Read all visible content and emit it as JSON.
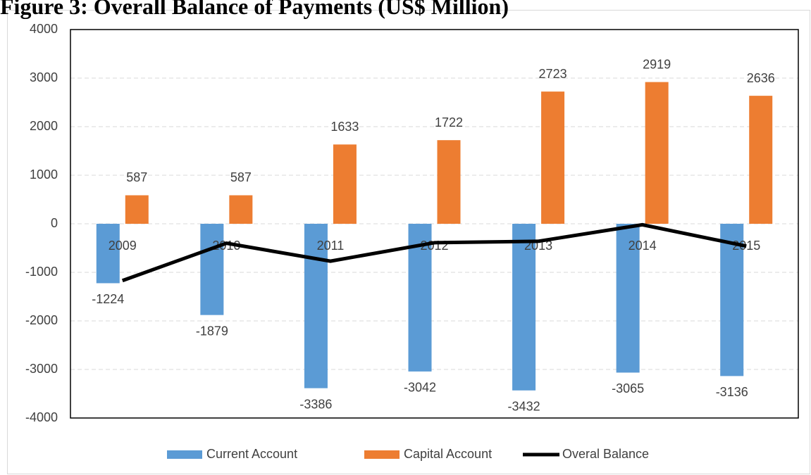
{
  "chart_data": {
    "type": "bar",
    "title": "Figure 3: Overall Balance of Payments (US$ Million)",
    "categories": [
      "2009",
      "2010",
      "2011",
      "2012",
      "2013",
      "2014",
      "2015"
    ],
    "series": [
      {
        "name": "Current Account",
        "color": "#5b9bd5",
        "type": "bar",
        "values": [
          -1224,
          -1879,
          -3386,
          -3042,
          -3432,
          -3065,
          -3136
        ]
      },
      {
        "name": "Capital Account",
        "color": "#ed7d31",
        "type": "bar",
        "values": [
          587,
          587,
          1633,
          1722,
          2723,
          2919,
          2636
        ]
      },
      {
        "name": "Overal Balance",
        "color": "#000000",
        "type": "line",
        "values": [
          -1170,
          -400,
          -770,
          -390,
          -360,
          -20,
          -460
        ]
      }
    ],
    "ylim": [
      -4000,
      4000
    ],
    "yticks": [
      -4000,
      -3000,
      -2000,
      -1000,
      0,
      1000,
      2000,
      3000,
      4000
    ],
    "grid": true,
    "legend": "bottom"
  }
}
